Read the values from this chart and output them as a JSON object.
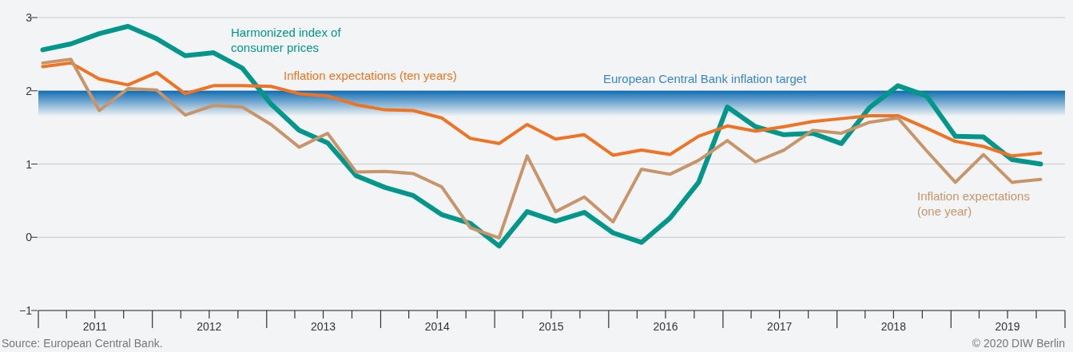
{
  "chart_data": {
    "type": "line",
    "x": [
      "2011-01-15",
      "2011-04-15",
      "2011-07-15",
      "2011-10-15",
      "2012-01-15",
      "2012-04-15",
      "2012-07-15",
      "2012-10-15",
      "2013-01-15",
      "2013-04-15",
      "2013-07-15",
      "2013-10-15",
      "2014-01-15",
      "2014-04-15",
      "2014-07-15",
      "2014-10-15",
      "2015-01-15",
      "2015-04-15",
      "2015-07-15",
      "2015-10-15",
      "2016-01-15",
      "2016-04-15",
      "2016-07-15",
      "2016-10-15",
      "2017-01-15",
      "2017-04-15",
      "2017-07-15",
      "2017-10-15",
      "2018-01-15",
      "2018-04-15",
      "2018-07-15",
      "2018-10-15",
      "2019-01-15",
      "2019-04-15",
      "2019-07-15",
      "2019-10-15"
    ],
    "series": [
      {
        "name": "Harmonized index of consumer prices",
        "color": "#00968a",
        "values": [
          2.56,
          2.64,
          2.78,
          2.88,
          2.71,
          2.48,
          2.52,
          2.31,
          1.82,
          1.46,
          1.29,
          0.84,
          0.68,
          0.57,
          0.31,
          0.19,
          -0.12,
          0.35,
          0.22,
          0.34,
          0.06,
          -0.07,
          0.26,
          0.75,
          1.78,
          1.51,
          1.4,
          1.42,
          1.28,
          1.77,
          2.07,
          1.93,
          1.38,
          1.37,
          1.06,
          1.0
        ]
      },
      {
        "name": "Inflation expectations (ten years)",
        "color": "#f07323",
        "values": [
          2.33,
          2.38,
          2.16,
          2.08,
          2.25,
          1.96,
          2.07,
          2.07,
          2.06,
          1.96,
          1.93,
          1.81,
          1.74,
          1.73,
          1.63,
          1.35,
          1.28,
          1.54,
          1.34,
          1.4,
          1.12,
          1.19,
          1.13,
          1.38,
          1.52,
          1.45,
          1.51,
          1.58,
          1.62,
          1.66,
          1.66,
          1.49,
          1.31,
          1.24,
          1.11,
          1.15
        ]
      },
      {
        "name": "Inflation expectations (one year)",
        "color": "#c8956a",
        "values": [
          2.38,
          2.43,
          1.73,
          2.03,
          2.01,
          1.67,
          1.8,
          1.78,
          1.54,
          1.23,
          1.42,
          0.89,
          0.9,
          0.87,
          0.69,
          0.13,
          -0.01,
          1.11,
          0.35,
          0.55,
          0.21,
          0.93,
          0.86,
          1.05,
          1.32,
          1.03,
          1.19,
          1.46,
          1.42,
          1.57,
          1.63,
          1.18,
          0.75,
          1.13,
          0.75,
          0.79
        ]
      }
    ],
    "xlim": [
      "2011-01-01",
      "2020-01-01"
    ],
    "xticks": [
      {
        "value": "2011-01-01",
        "label": null
      },
      {
        "value": "2011-04-01",
        "label": null
      },
      {
        "value": "2011-07-01",
        "label": "2011"
      },
      {
        "value": "2011-10-01",
        "label": null
      },
      {
        "value": "2012-01-01",
        "label": null
      },
      {
        "value": "2012-04-01",
        "label": null
      },
      {
        "value": "2012-07-01",
        "label": "2012"
      },
      {
        "value": "2012-10-01",
        "label": null
      },
      {
        "value": "2013-01-01",
        "label": null
      },
      {
        "value": "2013-04-01",
        "label": null
      },
      {
        "value": "2013-07-01",
        "label": "2013"
      },
      {
        "value": "2013-10-01",
        "label": null
      },
      {
        "value": "2014-01-01",
        "label": null
      },
      {
        "value": "2014-04-01",
        "label": null
      },
      {
        "value": "2014-07-01",
        "label": "2014"
      },
      {
        "value": "2014-10-01",
        "label": null
      },
      {
        "value": "2015-01-01",
        "label": null
      },
      {
        "value": "2015-04-01",
        "label": null
      },
      {
        "value": "2015-07-01",
        "label": "2015"
      },
      {
        "value": "2015-10-01",
        "label": null
      },
      {
        "value": "2016-01-01",
        "label": null
      },
      {
        "value": "2016-04-01",
        "label": null
      },
      {
        "value": "2016-07-01",
        "label": "2016"
      },
      {
        "value": "2016-10-01",
        "label": null
      },
      {
        "value": "2017-01-01",
        "label": null
      },
      {
        "value": "2017-04-01",
        "label": null
      },
      {
        "value": "2017-07-01",
        "label": "2017"
      },
      {
        "value": "2017-10-01",
        "label": null
      },
      {
        "value": "2018-01-01",
        "label": null
      },
      {
        "value": "2018-04-01",
        "label": null
      },
      {
        "value": "2018-07-01",
        "label": "2018"
      },
      {
        "value": "2018-10-01",
        "label": null
      },
      {
        "value": "2019-01-01",
        "label": null
      },
      {
        "value": "2019-04-01",
        "label": null
      },
      {
        "value": "2019-07-01",
        "label": "2019"
      },
      {
        "value": "2019-10-01",
        "label": null
      },
      {
        "value": "2020-01-01",
        "label": null
      }
    ],
    "ylim": [
      -1,
      3
    ],
    "yticks": [
      {
        "value": -1,
        "label": "−1"
      },
      0,
      1,
      2,
      3
    ],
    "grid": "y",
    "legend": false,
    "bands": [
      {
        "axis": "y",
        "from": 1.65,
        "to": 2,
        "label": "European Central Bank inflation target",
        "color": "#0a6ab0"
      }
    ],
    "annotations": [
      "Source: European Central Bank.",
      "© 2020 DIW Berlin"
    ]
  }
}
